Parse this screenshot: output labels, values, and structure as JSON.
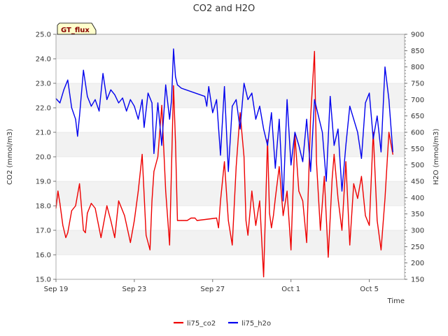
{
  "chart_data": {
    "type": "line",
    "title": "CO2 and H2O",
    "badge": "GT_flux",
    "xlabel": "Time",
    "ylabel_left": "CO2 (mmol/m3)",
    "ylabel_right": "H2O (mmol/m3)",
    "x_ticks": [
      "Sep 19",
      "Sep 23",
      "Sep 27",
      "Oct 1",
      "Oct 5"
    ],
    "x_tick_days": [
      0,
      4,
      8,
      12,
      16
    ],
    "xlim_days": [
      0,
      17.8
    ],
    "ylim_left": [
      15.0,
      25.0
    ],
    "yticks_left": [
      "15.0",
      "16.0",
      "17.0",
      "18.0",
      "19.0",
      "20.0",
      "21.0",
      "22.0",
      "23.0",
      "24.0",
      "25.0"
    ],
    "ylim_right": [
      150,
      900
    ],
    "yticks_right": [
      "150",
      "200",
      "250",
      "300",
      "350",
      "400",
      "450",
      "500",
      "550",
      "600",
      "650",
      "700",
      "750",
      "800",
      "850",
      "900"
    ],
    "grid": true,
    "legend_position": "bottom",
    "series": [
      {
        "name": "li75_co2",
        "color": "#ee0000",
        "axis": "left",
        "x": [
          0.0,
          0.1,
          0.2,
          0.35,
          0.5,
          0.6,
          0.8,
          0.9,
          1.0,
          1.2,
          1.4,
          1.5,
          1.6,
          1.8,
          2.0,
          2.3,
          2.6,
          2.8,
          3.0,
          3.2,
          3.5,
          3.8,
          4.0,
          4.2,
          4.4,
          4.6,
          4.8,
          4.9,
          5.0,
          5.2,
          5.4,
          5.6,
          5.8,
          6.0,
          6.1,
          6.2,
          6.4,
          6.5,
          6.6,
          6.7,
          6.9,
          7.0,
          7.1,
          7.2,
          8.2,
          8.3,
          8.4,
          8.6,
          8.8,
          9.0,
          9.2,
          9.4,
          9.6,
          9.7,
          9.8,
          10.0,
          10.2,
          10.4,
          10.6,
          10.8,
          10.9,
          11.0,
          11.1,
          11.2,
          11.4,
          11.6,
          11.8,
          12.0,
          12.2,
          12.4,
          12.6,
          12.8,
          13.0,
          13.2,
          13.3,
          13.5,
          13.7,
          13.9,
          14.1,
          14.2,
          14.4,
          14.6,
          14.8,
          15.0,
          15.2,
          15.4,
          15.6,
          15.8,
          16.0,
          16.2,
          16.4,
          16.6,
          16.8,
          17.0,
          17.2
        ],
        "y": [
          17.9,
          18.6,
          18.1,
          17.2,
          16.7,
          16.9,
          17.8,
          17.9,
          18.0,
          18.9,
          17.0,
          16.9,
          17.7,
          18.1,
          17.9,
          16.7,
          18.0,
          17.4,
          16.7,
          18.2,
          17.6,
          16.5,
          17.4,
          18.6,
          20.1,
          16.8,
          16.2,
          18.2,
          19.4,
          20.0,
          22.1,
          18.6,
          16.4,
          22.9,
          20.6,
          17.4,
          17.4,
          17.4,
          17.4,
          17.4,
          17.5,
          17.5,
          17.5,
          17.4,
          17.5,
          17.1,
          18.2,
          19.8,
          17.4,
          16.4,
          19.6,
          21.8,
          20.0,
          17.4,
          16.8,
          18.6,
          17.2,
          18.2,
          15.1,
          20.7,
          17.7,
          17.1,
          17.6,
          18.3,
          19.6,
          17.6,
          18.6,
          16.2,
          20.9,
          18.6,
          18.2,
          16.5,
          21.6,
          24.3,
          19.8,
          17.0,
          19.2,
          15.9,
          19.1,
          20.1,
          18.3,
          17.0,
          19.8,
          16.4,
          18.9,
          18.3,
          19.2,
          17.6,
          17.2,
          21.0,
          17.4,
          16.2,
          18.3,
          21.0,
          20.1
        ]
      },
      {
        "name": "li75_h2o",
        "color": "#0000ee",
        "axis": "right",
        "x": [
          0.0,
          0.2,
          0.4,
          0.6,
          0.8,
          1.0,
          1.1,
          1.2,
          1.4,
          1.6,
          1.8,
          2.0,
          2.2,
          2.4,
          2.6,
          2.8,
          3.0,
          3.2,
          3.4,
          3.6,
          3.8,
          4.0,
          4.2,
          4.4,
          4.5,
          4.7,
          4.9,
          5.0,
          5.2,
          5.4,
          5.6,
          5.8,
          5.9,
          6.0,
          6.1,
          6.2,
          6.4,
          7.6,
          7.7,
          7.8,
          8.0,
          8.2,
          8.4,
          8.6,
          8.8,
          9.0,
          9.2,
          9.4,
          9.6,
          9.8,
          10.0,
          10.2,
          10.4,
          10.6,
          10.8,
          11.0,
          11.2,
          11.4,
          11.6,
          11.8,
          12.0,
          12.2,
          12.4,
          12.6,
          12.8,
          13.0,
          13.2,
          13.4,
          13.6,
          13.8,
          14.0,
          14.2,
          14.4,
          14.6,
          14.8,
          15.0,
          15.2,
          15.4,
          15.6,
          15.8,
          16.0,
          16.2,
          16.4,
          16.6,
          16.8,
          17.0,
          17.2
        ],
        "y": [
          703,
          690,
          730,
          760,
          675,
          640,
          588,
          650,
          790,
          710,
          680,
          700,
          665,
          780,
          700,
          730,
          715,
          690,
          705,
          665,
          700,
          680,
          640,
          700,
          615,
          720,
          690,
          535,
          690,
          560,
          745,
          640,
          700,
          855,
          770,
          745,
          735,
          710,
          680,
          740,
          660,
          700,
          530,
          740,
          480,
          680,
          700,
          610,
          750,
          700,
          720,
          640,
          680,
          610,
          560,
          660,
          490,
          640,
          390,
          700,
          500,
          600,
          560,
          510,
          640,
          480,
          700,
          650,
          600,
          450,
          710,
          560,
          610,
          420,
          560,
          680,
          640,
          600,
          520,
          690,
          720,
          580,
          650,
          540,
          800,
          700,
          540
        ]
      }
    ]
  }
}
